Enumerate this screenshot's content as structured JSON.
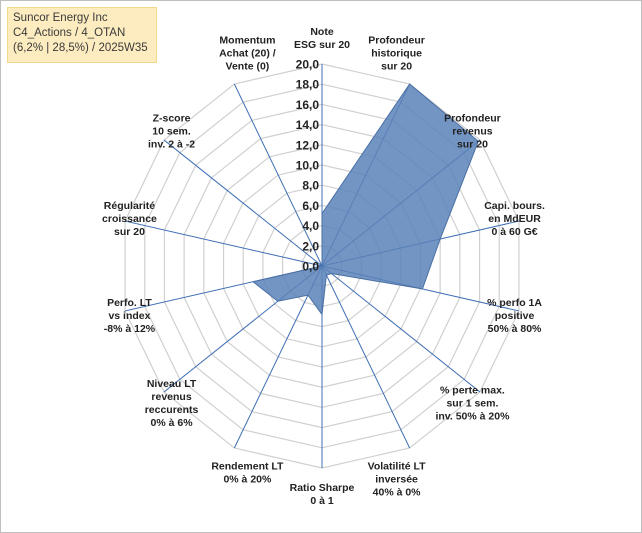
{
  "title_box": {
    "line1": "Suncor Energy Inc",
    "line2": "C4_Actions / 4_OTAN",
    "line3": "(6,2% | 28,5%) / 2025W35"
  },
  "colors": {
    "fill": "#5b83b8",
    "stroke": "#4a6fa5",
    "axis": "#3f6fb5",
    "grid": "#d0d0d0"
  },
  "chart_data": {
    "type": "radar",
    "range": [
      0,
      20
    ],
    "tick_step": 2,
    "ticks": [
      "0,0",
      "2,0",
      "4,0",
      "6,0",
      "8,0",
      "10,0",
      "12,0",
      "14,0",
      "16,0",
      "18,0",
      "20,0"
    ],
    "axes": [
      "Note\nESG sur 20",
      "Profondeur\nhistorique\nsur 20",
      "Profondeur\nrevenus\nsur 20",
      "Capi. bours.\nen MdEUR\n0 à 60 G€",
      "% perfo 1A\npositive\n50% à 80%",
      "% perte max.\nsur 1 sem.\ninv. 50% à 20%",
      "Volatilité LT\ninversée\n40% à 0%",
      "Ratio Sharpe\n0 à 1",
      "Rendement LT\n0% à 20%",
      "Niveau LT\nrevenus\nreccurents\n0% à 6%",
      "Perfo. LT\nvs index\n-8% à 12%",
      "Régularité\ncroissance\nsur 20",
      "Z-score\n10 sem.\ninv. 2 à -2",
      "Momentum\nAchat (20) /\nVente (0)"
    ],
    "values": [
      5.2,
      20.0,
      19.8,
      12.0,
      10.2,
      1.2,
      1.0,
      4.8,
      3.2,
      5.6,
      7.0,
      0.0,
      0.0,
      0.0
    ],
    "grid": true,
    "legend": "none"
  }
}
